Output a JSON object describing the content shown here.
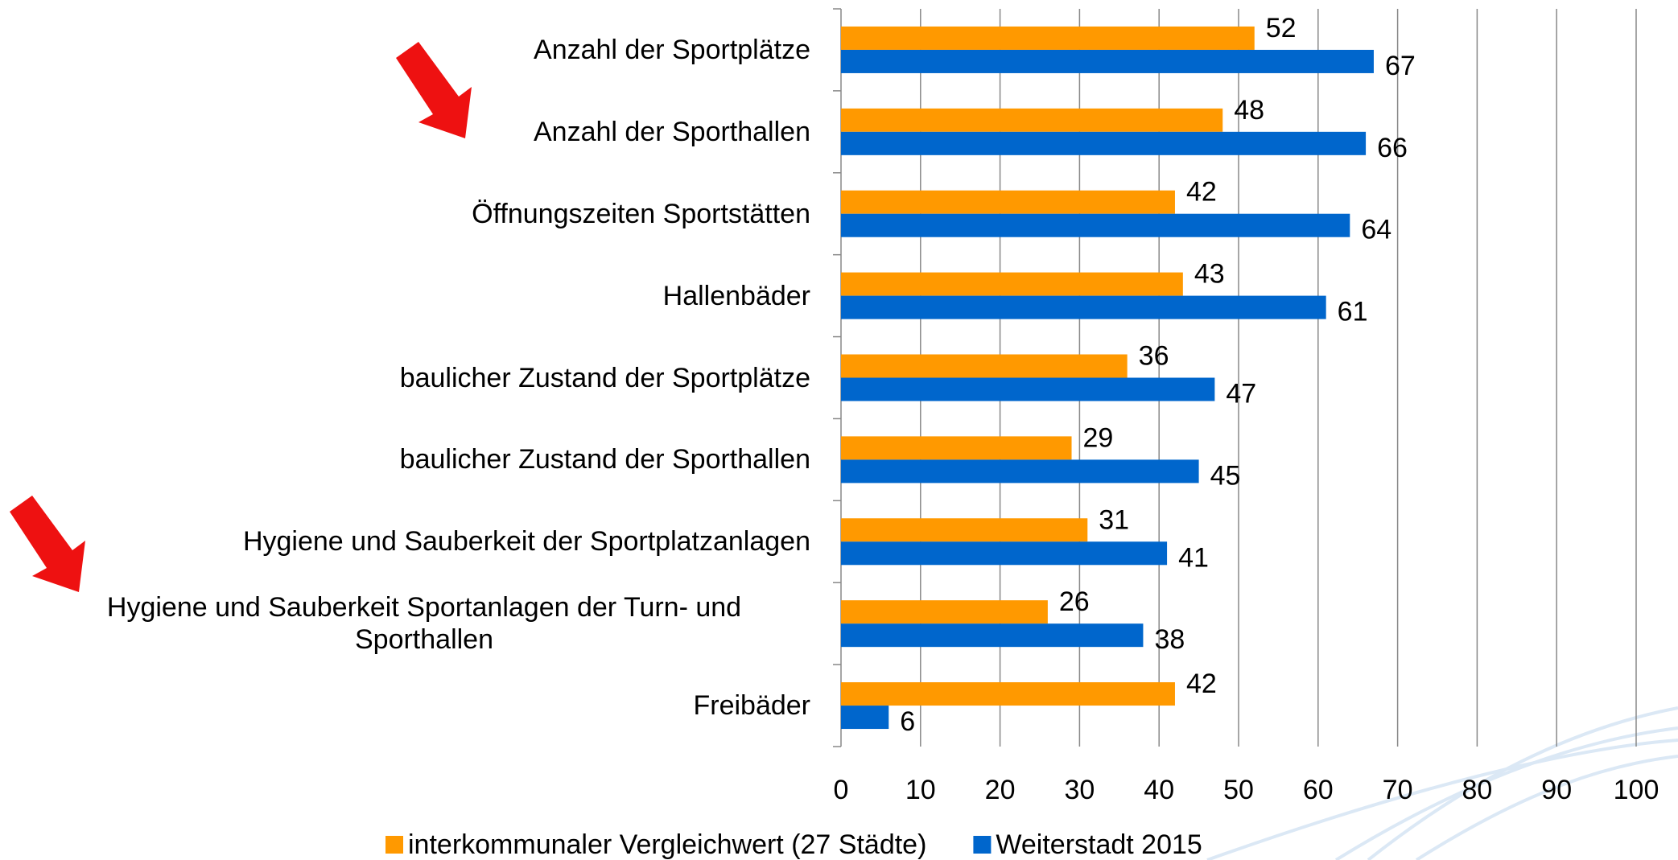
{
  "chart_data": {
    "type": "barh",
    "categories": [
      "Anzahl der  Sportplätze",
      "Anzahl der Sporthallen",
      "Öffnungszeiten Sportstätten",
      "Hallenbäder",
      "baulicher Zustand der Sportplätze",
      "baulicher Zustand der Sporthallen",
      "Hygiene und Sauberkeit der Sportplatzanlagen",
      "Hygiene und Sauberkeit Sportanlagen der Turn- und Sporthallen",
      "Freibäder"
    ],
    "series": [
      {
        "name": "interkommunaler Vergleichwert (27 Städte)",
        "color": "#ff9900",
        "values": [
          52,
          48,
          42,
          43,
          36,
          29,
          31,
          26,
          42
        ]
      },
      {
        "name": "Weiterstadt 2015",
        "color": "#0066cc",
        "values": [
          67,
          66,
          64,
          61,
          47,
          45,
          41,
          38,
          6
        ]
      }
    ],
    "xlim": [
      0,
      100
    ],
    "xticks": [
      0,
      10,
      20,
      30,
      40,
      50,
      60,
      70,
      80,
      90,
      100
    ],
    "grid": true,
    "legend": "bottom"
  }
}
